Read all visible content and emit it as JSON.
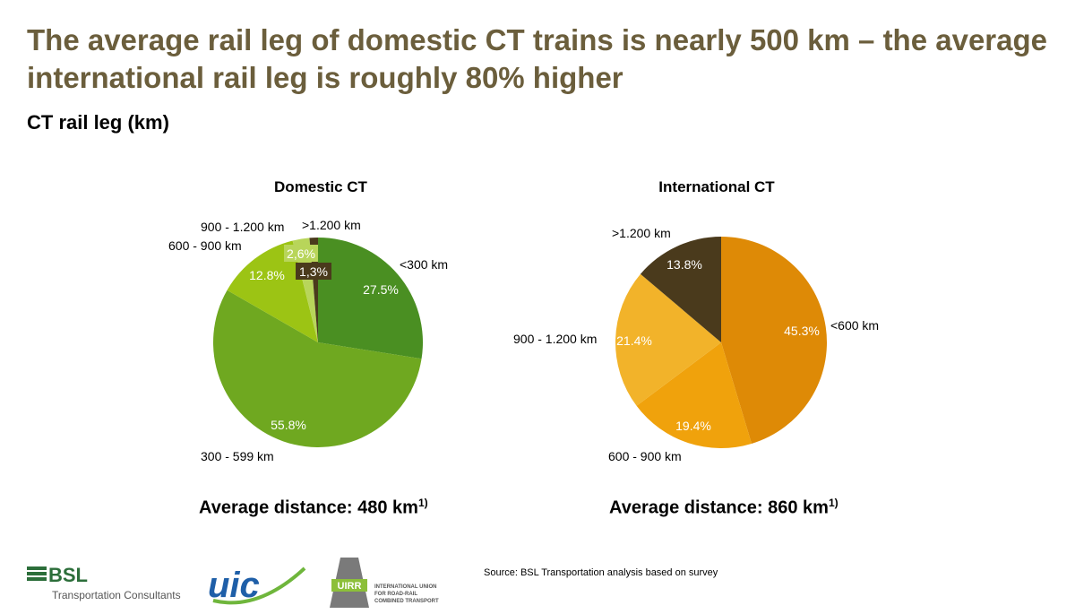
{
  "title": "The average rail leg of domestic CT trains is nearly 500 km – the average international rail leg is roughly 80% higher",
  "subtitle": "CT rail leg (km)",
  "chart_data": [
    {
      "type": "pie",
      "title": "Domestic CT",
      "slices": [
        {
          "label": "<300 km",
          "value": 27.5,
          "value_label": "27.5%",
          "color": "#4a8f22"
        },
        {
          "label": "300 - 599 km",
          "value": 55.8,
          "value_label": "55.8%",
          "color": "#6fa820"
        },
        {
          "label": "600 - 900 km",
          "value": 12.8,
          "value_label": "12.8%",
          "color": "#9cc414"
        },
        {
          "label": "900 - 1.200 km",
          "value": 2.6,
          "value_label": "2,6%",
          "color": "#b8d55a"
        },
        {
          "label": ">1.200 km",
          "value": 1.3,
          "value_label": "1,3%",
          "color": "#4a3a1c"
        }
      ],
      "footer": "Average distance: 480 km",
      "footnote": "1)"
    },
    {
      "type": "pie",
      "title": "International CT",
      "slices": [
        {
          "label": "<600 km",
          "value": 45.3,
          "value_label": "45.3%",
          "color": "#de8a06"
        },
        {
          "label": "600 - 900 km",
          "value": 19.4,
          "value_label": "19.4%",
          "color": "#f0a20c"
        },
        {
          "label": "900 - 1.200 km",
          "value": 21.4,
          "value_label": "21.4%",
          "color": "#f2b32a"
        },
        {
          "label": ">1.200 km",
          "value": 13.8,
          "value_label": "13.8%",
          "color": "#4a3a1c"
        }
      ],
      "footer": "Average distance: 860 km",
      "footnote": "1)"
    }
  ],
  "source": "Source: BSL Transportation analysis based on survey",
  "logos": {
    "bsl_text": "BSL",
    "bsl_sub": "Transportation Consultants",
    "uic_text": "uic",
    "uirr_text": "UIRR",
    "uirr_sub1": "INTERNATIONAL UNION",
    "uirr_sub2": "FOR ROAD-RAIL",
    "uirr_sub3": "COMBINED TRANSPORT"
  }
}
